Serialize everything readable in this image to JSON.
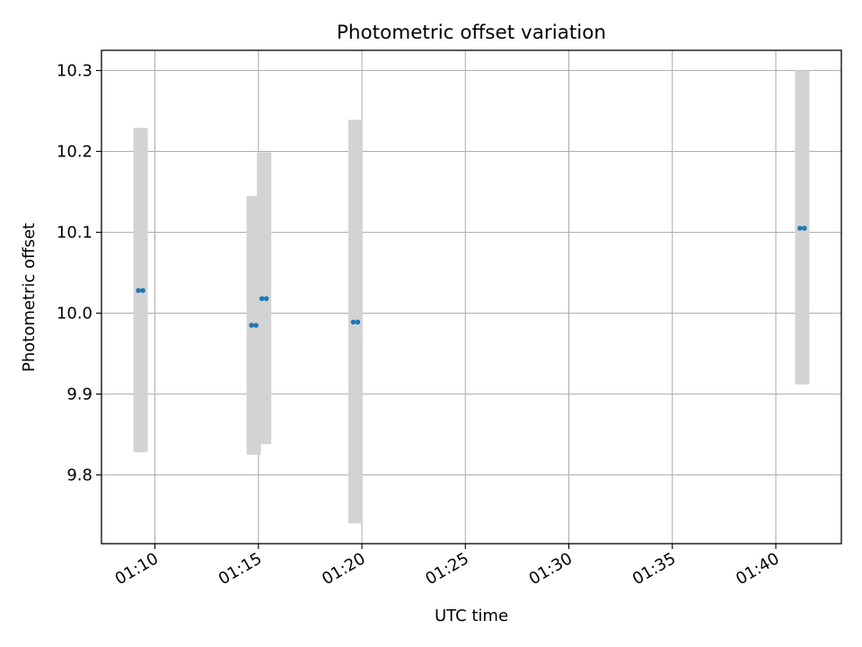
{
  "chart_data": {
    "type": "scatter",
    "title": "Photometric offset variation",
    "xlabel": "UTC time",
    "ylabel": "Photometric offset",
    "x_axis_type": "time",
    "xlim": [
      "01:07:25",
      "01:43:10"
    ],
    "ylim": [
      9.715,
      10.325
    ],
    "x_ticks": [
      "01:10",
      "01:15",
      "01:20",
      "01:25",
      "01:30",
      "01:35",
      "01:40"
    ],
    "y_ticks": [
      "9.8",
      "9.9",
      "10.0",
      "10.1",
      "10.2",
      "10.3"
    ],
    "grid": true,
    "point_color": "#1f77b4",
    "errorbar_color": "#d3d3d3",
    "points": [
      {
        "x": "01:09:12",
        "y": 10.028,
        "ylow": 9.828,
        "yhigh": 10.229
      },
      {
        "x": "01:09:25",
        "y": 10.028,
        "ylow": 9.828,
        "yhigh": 10.229
      },
      {
        "x": "01:14:40",
        "y": 9.985,
        "ylow": 9.825,
        "yhigh": 10.145
      },
      {
        "x": "01:14:53",
        "y": 9.985,
        "ylow": 9.825,
        "yhigh": 10.145
      },
      {
        "x": "01:15:10",
        "y": 10.018,
        "ylow": 9.838,
        "yhigh": 10.199
      },
      {
        "x": "01:15:23",
        "y": 10.018,
        "ylow": 9.838,
        "yhigh": 10.199
      },
      {
        "x": "01:19:35",
        "y": 9.989,
        "ylow": 9.74,
        "yhigh": 10.239
      },
      {
        "x": "01:19:48",
        "y": 9.989,
        "ylow": 9.74,
        "yhigh": 10.239
      },
      {
        "x": "01:41:10",
        "y": 10.105,
        "ylow": 9.912,
        "yhigh": 10.3
      },
      {
        "x": "01:41:23",
        "y": 10.105,
        "ylow": 9.912,
        "yhigh": 10.3
      }
    ]
  }
}
